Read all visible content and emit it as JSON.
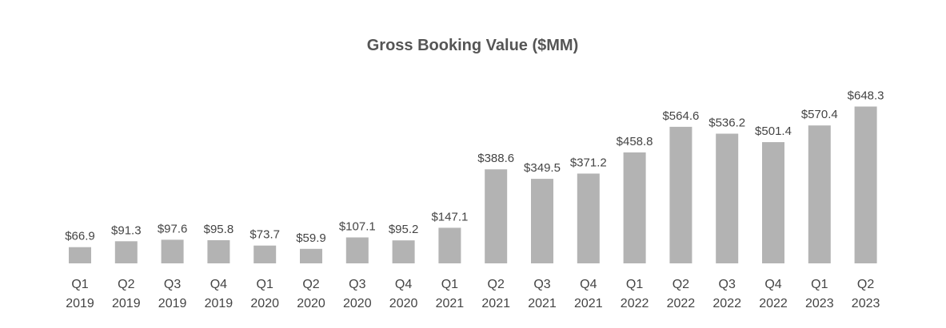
{
  "chart_data": {
    "type": "bar",
    "title": "Gross Booking Value ($MM)",
    "xlabel": "",
    "ylabel": "",
    "ylim": [
      0,
      660
    ],
    "grid": false,
    "legend": "none",
    "bar_color": "#b3b3b3",
    "categories": [
      [
        "Q1",
        "2019"
      ],
      [
        "Q2",
        "2019"
      ],
      [
        "Q3",
        "2019"
      ],
      [
        "Q4",
        "2019"
      ],
      [
        "Q1",
        "2020"
      ],
      [
        "Q2",
        "2020"
      ],
      [
        "Q3",
        "2020"
      ],
      [
        "Q4",
        "2020"
      ],
      [
        "Q1",
        "2021"
      ],
      [
        "Q2",
        "2021"
      ],
      [
        "Q3",
        "2021"
      ],
      [
        "Q4",
        "2021"
      ],
      [
        "Q1",
        "2022"
      ],
      [
        "Q2",
        "2022"
      ],
      [
        "Q3",
        "2022"
      ],
      [
        "Q4",
        "2022"
      ],
      [
        "Q1",
        "2023"
      ],
      [
        "Q2",
        "2023"
      ]
    ],
    "values": [
      66.9,
      91.3,
      97.6,
      95.8,
      73.7,
      59.9,
      107.1,
      95.2,
      147.1,
      388.6,
      349.5,
      371.2,
      458.8,
      564.6,
      536.2,
      501.4,
      570.4,
      648.3
    ],
    "data_labels": [
      "$66.9",
      "$91.3",
      "$97.6",
      "$95.8",
      "$73.7",
      "$59.9",
      "$107.1",
      "$95.2",
      "$147.1",
      "$388.6",
      "$349.5",
      "$371.2",
      "$458.8",
      "$564.6",
      "$536.2",
      "$501.4",
      "$570.4",
      "$648.3"
    ]
  }
}
